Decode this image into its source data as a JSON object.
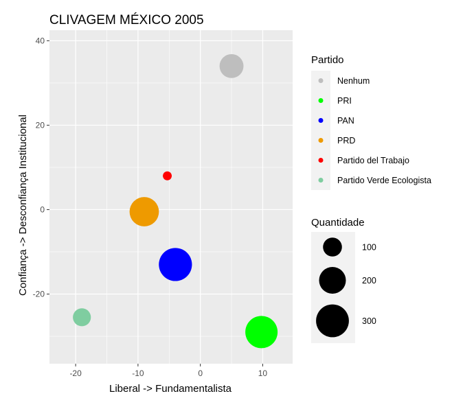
{
  "chart_data": {
    "type": "scatter",
    "title": "CLIVAGEM MÉXICO 2005",
    "xlabel": "Liberal -> Fundamentalista",
    "ylabel": "Confiança -> Desconfiança Institucional",
    "xlim": [
      -24.2,
      14.8
    ],
    "ylim": [
      -36.5,
      42.5
    ],
    "x_ticks": [
      -20,
      -10,
      0,
      10
    ],
    "y_ticks": [
      -20,
      0,
      20,
      40
    ],
    "grid": true,
    "points": [
      {
        "party": "Nenhum",
        "x": 5.0,
        "y": 34.0,
        "quantity": 160,
        "color": "#BEBEBE"
      },
      {
        "party": "PRI",
        "x": 9.8,
        "y": -29.0,
        "quantity": 290,
        "color": "#00FF00"
      },
      {
        "party": "PAN",
        "x": -4.0,
        "y": -13.0,
        "quantity": 305,
        "color": "#0000FF"
      },
      {
        "party": "PRD",
        "x": -9.0,
        "y": -0.5,
        "quantity": 240,
        "color": "#EE9A00"
      },
      {
        "party": "Partido del Trabajo",
        "x": -5.3,
        "y": 8.0,
        "quantity": 22,
        "color": "#FF0000"
      },
      {
        "party": "Partido Verde Ecologista",
        "x": -19.0,
        "y": -25.5,
        "quantity": 90,
        "color": "#7FCDA0"
      }
    ],
    "legend_color": {
      "title": "Partido",
      "entries": [
        {
          "label": "Nenhum",
          "color": "#BEBEBE"
        },
        {
          "label": "PRI",
          "color": "#00FF00"
        },
        {
          "label": "PAN",
          "color": "#0000FF"
        },
        {
          "label": "PRD",
          "color": "#EE9A00"
        },
        {
          "label": "Partido del Trabajo",
          "color": "#FF0000"
        },
        {
          "label": "Partido Verde Ecologista",
          "color": "#7FCDA0"
        }
      ]
    },
    "legend_size": {
      "title": "Quantidade",
      "entries": [
        {
          "label": "100",
          "value": 100
        },
        {
          "label": "200",
          "value": 200
        },
        {
          "label": "300",
          "value": 300
        }
      ]
    },
    "legend_placement": "right"
  }
}
